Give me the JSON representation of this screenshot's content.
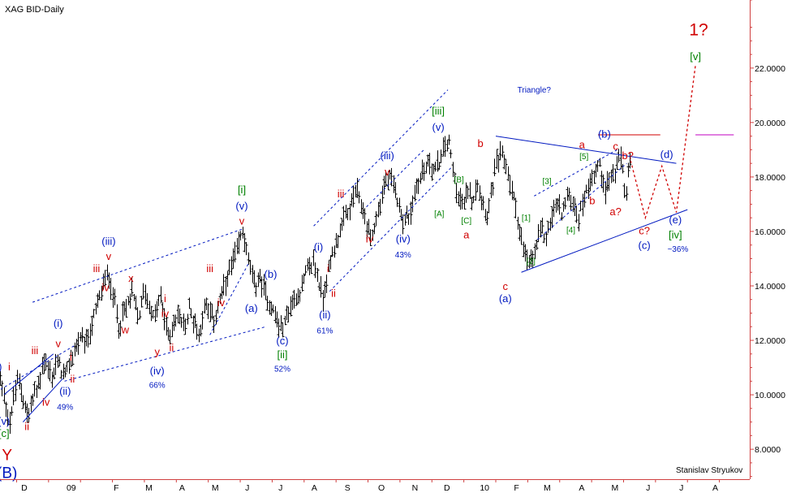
{
  "chart_data": {
    "type": "bar",
    "title": "XAG BID-Daily",
    "author": "Stanislav Stryukov",
    "ylim": [
      6.9,
      24.5
    ],
    "y_ticks": [
      8,
      10,
      12,
      14,
      16,
      18,
      20,
      22
    ],
    "y_tick_labels": [
      "8.0000",
      "10.0000",
      "12.0000",
      "14.0000",
      "16.0000",
      "18.0000",
      "20.0000",
      "22.0000"
    ],
    "x_labels": [
      {
        "label": "D",
        "x": 0.04
      },
      {
        "label": "09",
        "x": 1.51
      },
      {
        "label": "F",
        "x": 2.92
      },
      {
        "label": "M",
        "x": 3.94
      },
      {
        "label": "A",
        "x": 4.98
      },
      {
        "label": "M",
        "x": 6.02
      },
      {
        "label": "J",
        "x": 7.02
      },
      {
        "label": "J",
        "x": 8.06
      },
      {
        "label": "A",
        "x": 9.12
      },
      {
        "label": "S",
        "x": 10.16
      },
      {
        "label": "O",
        "x": 11.22
      },
      {
        "label": "N",
        "x": 12.27
      },
      {
        "label": "D",
        "x": 13.27
      },
      {
        "label": "10",
        "x": 14.45
      },
      {
        "label": "F",
        "x": 15.45
      },
      {
        "label": "M",
        "x": 16.41
      },
      {
        "label": "A",
        "x": 17.49
      },
      {
        "label": "M",
        "x": 18.53
      },
      {
        "label": "J",
        "x": 19.57
      },
      {
        "label": "J",
        "x": 20.61
      },
      {
        "label": "A",
        "x": 21.67
      }
    ],
    "xlim": [
      -0.72,
      22.75
    ],
    "x_tick_marks": [
      -0.2,
      0.8,
      1.8,
      2.8,
      3.8,
      4.8,
      5.8,
      6.8,
      7.8,
      8.8,
      9.8,
      10.8,
      11.8,
      12.8,
      13.8,
      14.8,
      15.8,
      16.8,
      17.8,
      18.8,
      19.8,
      20.8,
      21.8,
      22.8
    ],
    "price_path": [
      [
        -0.72,
        10.6
      ],
      [
        -0.55,
        9.7
      ],
      [
        -0.4,
        8.9
      ],
      [
        -0.3,
        9.9
      ],
      [
        -0.15,
        10.6
      ],
      [
        0.0,
        9.9
      ],
      [
        0.15,
        9.1
      ],
      [
        0.3,
        9.9
      ],
      [
        0.5,
        10.4
      ],
      [
        0.62,
        11.3
      ],
      [
        0.75,
        11.0
      ],
      [
        0.9,
        10.6
      ],
      [
        1.05,
        11.2
      ],
      [
        1.15,
        11.0
      ],
      [
        1.3,
        10.6
      ],
      [
        1.55,
        11.5
      ],
      [
        1.75,
        12.0
      ],
      [
        1.95,
        11.8
      ],
      [
        2.2,
        12.8
      ],
      [
        2.45,
        13.8
      ],
      [
        2.65,
        14.5
      ],
      [
        2.85,
        13.5
      ],
      [
        2.98,
        12.6
      ],
      [
        3.2,
        13.1
      ],
      [
        3.4,
        13.8
      ],
      [
        3.6,
        12.8
      ],
      [
        3.8,
        13.9
      ],
      [
        4.05,
        12.8
      ],
      [
        4.3,
        13.5
      ],
      [
        4.55,
        12.1
      ],
      [
        4.85,
        13.0
      ],
      [
        5.05,
        12.4
      ],
      [
        5.2,
        13.2
      ],
      [
        5.5,
        12.2
      ],
      [
        5.7,
        13.4
      ],
      [
        5.95,
        12.7
      ],
      [
        6.2,
        13.6
      ],
      [
        6.45,
        14.5
      ],
      [
        6.7,
        15.3
      ],
      [
        6.88,
        16.1
      ],
      [
        7.05,
        14.9
      ],
      [
        7.22,
        14.0
      ],
      [
        7.4,
        14.3
      ],
      [
        7.62,
        13.6
      ],
      [
        7.8,
        13.2
      ],
      [
        7.98,
        12.6
      ],
      [
        8.12,
        12.4
      ],
      [
        8.3,
        13.1
      ],
      [
        8.5,
        13.5
      ],
      [
        8.72,
        14.0
      ],
      [
        8.9,
        14.6
      ],
      [
        9.1,
        14.9
      ],
      [
        9.25,
        14.1
      ],
      [
        9.38,
        13.6
      ],
      [
        9.52,
        14.4
      ],
      [
        9.75,
        15.5
      ],
      [
        9.95,
        16.1
      ],
      [
        10.2,
        16.8
      ],
      [
        10.42,
        17.5
      ],
      [
        10.62,
        16.8
      ],
      [
        10.8,
        16.0
      ],
      [
        10.95,
        15.9
      ],
      [
        11.12,
        16.8
      ],
      [
        11.32,
        17.8
      ],
      [
        11.5,
        17.9
      ],
      [
        11.72,
        17.2
      ],
      [
        11.9,
        16.4
      ],
      [
        12.1,
        16.6
      ],
      [
        12.3,
        17.6
      ],
      [
        12.5,
        18.2
      ],
      [
        12.7,
        18.6
      ],
      [
        12.9,
        18.2
      ],
      [
        13.1,
        18.8
      ],
      [
        13.3,
        19.4
      ],
      [
        13.45,
        18.3
      ],
      [
        13.62,
        17.3
      ],
      [
        13.8,
        16.9
      ],
      [
        13.92,
        17.6
      ],
      [
        14.08,
        17.2
      ],
      [
        14.22,
        17.9
      ],
      [
        14.38,
        17.1
      ],
      [
        14.52,
        16.6
      ],
      [
        14.66,
        17.6
      ],
      [
        14.82,
        18.5
      ],
      [
        14.98,
        18.9
      ],
      [
        15.12,
        18.4
      ],
      [
        15.3,
        17.5
      ],
      [
        15.48,
        16.5
      ],
      [
        15.62,
        15.5
      ],
      [
        15.8,
        14.7
      ],
      [
        16.0,
        15.2
      ],
      [
        16.2,
        16.1
      ],
      [
        16.35,
        15.8
      ],
      [
        16.52,
        16.5
      ],
      [
        16.7,
        17.0
      ],
      [
        16.88,
        16.7
      ],
      [
        17.05,
        17.4
      ],
      [
        17.22,
        17.0
      ],
      [
        17.38,
        16.5
      ],
      [
        17.55,
        17.2
      ],
      [
        17.72,
        17.8
      ],
      [
        17.88,
        18.2
      ],
      [
        18.05,
        18.4
      ],
      [
        18.22,
        17.6
      ],
      [
        18.38,
        17.9
      ],
      [
        18.55,
        18.3
      ],
      [
        18.72,
        18.7
      ],
      [
        18.86,
        17.3
      ],
      [
        19.0,
        18.5
      ]
    ],
    "forecast_path": [
      [
        19.02,
        18.6
      ],
      [
        19.48,
        16.5
      ],
      [
        20.0,
        18.4
      ],
      [
        20.45,
        16.7
      ],
      [
        21.05,
        22.1
      ]
    ],
    "trendlines": [
      {
        "points": [
          [
            -0.6,
            10.0
          ],
          [
            0.95,
            11.5
          ]
        ],
        "style": "solid"
      },
      {
        "points": [
          [
            0.0,
            9.0
          ],
          [
            1.25,
            10.6
          ]
        ],
        "style": "solid"
      },
      {
        "points": [
          [
            -0.7,
            10.2
          ],
          [
            1.6,
            11.8
          ]
        ],
        "style": "dashed"
      },
      {
        "points": [
          [
            0.3,
            13.4
          ],
          [
            6.9,
            16.1
          ]
        ],
        "style": "dashed"
      },
      {
        "points": [
          [
            1.3,
            10.5
          ],
          [
            7.6,
            12.5
          ]
        ],
        "style": "dashed"
      },
      {
        "points": [
          [
            5.85,
            12.2
          ],
          [
            7.05,
            14.8
          ]
        ],
        "style": "dashed"
      },
      {
        "points": [
          [
            9.1,
            16.2
          ],
          [
            13.3,
            21.2
          ]
        ],
        "style": "dashed"
      },
      {
        "points": [
          [
            9.6,
            13.8
          ],
          [
            13.45,
            18.4
          ]
        ],
        "style": "dashed"
      },
      {
        "points": [
          [
            10.75,
            16.9
          ],
          [
            12.55,
            19.0
          ]
        ],
        "style": "dashed"
      },
      {
        "points": [
          [
            16.1,
            15.7
          ],
          [
            18.9,
            18.5
          ]
        ],
        "style": "dashed"
      },
      {
        "points": [
          [
            16.0,
            17.3
          ],
          [
            18.6,
            19.0
          ]
        ],
        "style": "dashed"
      },
      {
        "points": [
          [
            14.8,
            19.5
          ],
          [
            20.45,
            18.5
          ]
        ],
        "style": "solid"
      },
      {
        "points": [
          [
            15.6,
            14.5
          ],
          [
            20.8,
            16.8
          ]
        ],
        "style": "solid"
      }
    ],
    "hlines": [
      {
        "points": [
          [
            18.0,
            19.55
          ],
          [
            19.95,
            19.55
          ]
        ],
        "color": "#d00000"
      },
      {
        "points": [
          [
            21.05,
            19.55
          ],
          [
            22.25,
            19.55
          ]
        ],
        "color": "#c000c0"
      }
    ],
    "wave_labels": [
      {
        "text": "Y",
        "x": -0.5,
        "y": 7.6,
        "color": "#d00000",
        "size": 19
      },
      {
        "text": "(B)",
        "x": -0.5,
        "y": 6.95,
        "color": "#0018c0",
        "size": 19
      },
      {
        "text": "[c]",
        "x": -0.6,
        "y": 8.45,
        "color": "#008000",
        "size": 13
      },
      {
        "text": "(v)",
        "x": -0.6,
        "y": 8.9,
        "color": "#0018c0",
        "size": 13
      },
      {
        "text": "(v)",
        "x": -0.85,
        "y": 10.9,
        "color": "#0018c0",
        "size": 13
      },
      {
        "text": "i",
        "x": -0.43,
        "y": 10.9,
        "color": "#d00000",
        "size": 13
      },
      {
        "text": "ii",
        "x": 0.12,
        "y": 8.7,
        "color": "#d00000",
        "size": 13
      },
      {
        "text": "iii",
        "x": 0.37,
        "y": 11.5,
        "color": "#d00000",
        "size": 13
      },
      {
        "text": "iv",
        "x": 0.72,
        "y": 9.6,
        "color": "#d00000",
        "size": 13
      },
      {
        "text": "(i)",
        "x": 1.1,
        "y": 12.5,
        "color": "#0018c0",
        "size": 13
      },
      {
        "text": "v",
        "x": 1.1,
        "y": 11.75,
        "color": "#d00000",
        "size": 13
      },
      {
        "text": "i",
        "x": 1.5,
        "y": 11.25,
        "color": "#d00000",
        "size": 13
      },
      {
        "text": "ii",
        "x": 1.55,
        "y": 10.45,
        "color": "#d00000",
        "size": 13
      },
      {
        "text": "(ii)",
        "x": 1.32,
        "y": 10.0,
        "color": "#0018c0",
        "size": 13
      },
      {
        "text": "49%",
        "x": 1.32,
        "y": 9.45,
        "color": "#0018c0",
        "size": 10
      },
      {
        "text": "(iii)",
        "x": 2.68,
        "y": 15.5,
        "color": "#0018c0",
        "size": 13
      },
      {
        "text": "v",
        "x": 2.68,
        "y": 14.95,
        "color": "#d00000",
        "size": 13
      },
      {
        "text": "iii",
        "x": 2.3,
        "y": 14.5,
        "color": "#d00000",
        "size": 13
      },
      {
        "text": "iv",
        "x": 2.58,
        "y": 13.8,
        "color": "#d00000",
        "size": 13
      },
      {
        "text": "x",
        "x": 3.38,
        "y": 14.15,
        "color": "#d00000",
        "size": 13
      },
      {
        "text": "w",
        "x": 3.2,
        "y": 12.25,
        "color": "#d00000",
        "size": 13
      },
      {
        "text": "i",
        "x": 4.45,
        "y": 13.4,
        "color": "#d00000",
        "size": 13
      },
      {
        "text": "iv",
        "x": 4.45,
        "y": 12.85,
        "color": "#d00000",
        "size": 13
      },
      {
        "text": "y",
        "x": 4.2,
        "y": 11.45,
        "color": "#d00000",
        "size": 13
      },
      {
        "text": "ii",
        "x": 4.65,
        "y": 11.6,
        "color": "#d00000",
        "size": 13
      },
      {
        "text": "(iv)",
        "x": 4.2,
        "y": 10.75,
        "color": "#0018c0",
        "size": 13
      },
      {
        "text": "66%",
        "x": 4.2,
        "y": 10.25,
        "color": "#0018c0",
        "size": 10
      },
      {
        "text": "iii",
        "x": 5.85,
        "y": 14.5,
        "color": "#d00000",
        "size": 13
      },
      {
        "text": "iv",
        "x": 6.2,
        "y": 13.25,
        "color": "#d00000",
        "size": 13
      },
      {
        "text": "[i]",
        "x": 6.85,
        "y": 17.4,
        "color": "#008000",
        "size": 13
      },
      {
        "text": "(v)",
        "x": 6.85,
        "y": 16.8,
        "color": "#0018c0",
        "size": 13
      },
      {
        "text": "v",
        "x": 6.85,
        "y": 16.25,
        "color": "#d00000",
        "size": 13
      },
      {
        "text": "(b)",
        "x": 7.75,
        "y": 14.3,
        "color": "#0018c0",
        "size": 13
      },
      {
        "text": "(a)",
        "x": 7.15,
        "y": 13.05,
        "color": "#0018c0",
        "size": 13
      },
      {
        "text": "(c)",
        "x": 8.12,
        "y": 11.85,
        "color": "#0018c0",
        "size": 13
      },
      {
        "text": "[ii]",
        "x": 8.12,
        "y": 11.35,
        "color": "#008000",
        "size": 13
      },
      {
        "text": "52%",
        "x": 8.12,
        "y": 10.85,
        "color": "#0018c0",
        "size": 10
      },
      {
        "text": "(i)",
        "x": 9.25,
        "y": 15.3,
        "color": "#0018c0",
        "size": 13
      },
      {
        "text": "i",
        "x": 9.55,
        "y": 14.5,
        "color": "#d00000",
        "size": 13
      },
      {
        "text": "ii",
        "x": 9.72,
        "y": 13.6,
        "color": "#d00000",
        "size": 13
      },
      {
        "text": "(ii)",
        "x": 9.45,
        "y": 12.8,
        "color": "#0018c0",
        "size": 13
      },
      {
        "text": "61%",
        "x": 9.45,
        "y": 12.25,
        "color": "#0018c0",
        "size": 10
      },
      {
        "text": "iii",
        "x": 9.95,
        "y": 17.25,
        "color": "#d00000",
        "size": 13
      },
      {
        "text": "iv",
        "x": 10.85,
        "y": 15.6,
        "color": "#d00000",
        "size": 13
      },
      {
        "text": "(iii)",
        "x": 11.4,
        "y": 18.65,
        "color": "#0018c0",
        "size": 13
      },
      {
        "text": "v",
        "x": 11.4,
        "y": 18.05,
        "color": "#d00000",
        "size": 13
      },
      {
        "text": "(iv)",
        "x": 11.9,
        "y": 15.6,
        "color": "#0018c0",
        "size": 13
      },
      {
        "text": "43%",
        "x": 11.9,
        "y": 15.05,
        "color": "#0018c0",
        "size": 10
      },
      {
        "text": "[iii]",
        "x": 13.0,
        "y": 20.3,
        "color": "#008000",
        "size": 13
      },
      {
        "text": "(v)",
        "x": 13.0,
        "y": 19.7,
        "color": "#0018c0",
        "size": 13
      },
      {
        "text": "[A]",
        "x": 13.03,
        "y": 16.55,
        "color": "#008000",
        "size": 10
      },
      {
        "text": "[B]",
        "x": 13.65,
        "y": 17.8,
        "color": "#008000",
        "size": 10
      },
      {
        "text": "[C]",
        "x": 13.88,
        "y": 16.3,
        "color": "#008000",
        "size": 10
      },
      {
        "text": "a",
        "x": 13.88,
        "y": 15.75,
        "color": "#d00000",
        "size": 13
      },
      {
        "text": "b",
        "x": 14.32,
        "y": 19.1,
        "color": "#d00000",
        "size": 13
      },
      {
        "text": "Triangle?",
        "x": 16.0,
        "y": 21.1,
        "color": "#0018c0",
        "size": 10
      },
      {
        "text": "c",
        "x": 15.1,
        "y": 13.85,
        "color": "#d00000",
        "size": 13
      },
      {
        "text": "(a)",
        "x": 15.1,
        "y": 13.4,
        "color": "#0018c0",
        "size": 13
      },
      {
        "text": "[1]",
        "x": 15.75,
        "y": 16.4,
        "color": "#008000",
        "size": 10
      },
      {
        "text": "[2]",
        "x": 15.9,
        "y": 14.8,
        "color": "#008000",
        "size": 10
      },
      {
        "text": "[3]",
        "x": 16.4,
        "y": 17.75,
        "color": "#008000",
        "size": 10
      },
      {
        "text": "[4]",
        "x": 17.15,
        "y": 15.95,
        "color": "#008000",
        "size": 10
      },
      {
        "text": "[5]",
        "x": 17.56,
        "y": 18.65,
        "color": "#008000",
        "size": 10
      },
      {
        "text": "a",
        "x": 17.5,
        "y": 19.05,
        "color": "#d00000",
        "size": 13
      },
      {
        "text": "b",
        "x": 17.82,
        "y": 17.0,
        "color": "#d00000",
        "size": 13
      },
      {
        "text": "(b)",
        "x": 18.2,
        "y": 19.45,
        "color": "#0018c0",
        "size": 13
      },
      {
        "text": "c",
        "x": 18.55,
        "y": 19.0,
        "color": "#d00000",
        "size": 13
      },
      {
        "text": "b?",
        "x": 18.93,
        "y": 18.65,
        "color": "#d00000",
        "size": 13
      },
      {
        "text": "a?",
        "x": 18.55,
        "y": 16.6,
        "color": "#d00000",
        "size": 13
      },
      {
        "text": "(d)",
        "x": 20.15,
        "y": 18.7,
        "color": "#0018c0",
        "size": 13
      },
      {
        "text": "c?",
        "x": 19.45,
        "y": 15.9,
        "color": "#d00000",
        "size": 13
      },
      {
        "text": "(c)",
        "x": 19.45,
        "y": 15.35,
        "color": "#0018c0",
        "size": 13
      },
      {
        "text": "(e)",
        "x": 20.42,
        "y": 16.3,
        "color": "#0018c0",
        "size": 13
      },
      {
        "text": "[iv]",
        "x": 20.42,
        "y": 15.75,
        "color": "#008000",
        "size": 13
      },
      {
        "text": "~36%",
        "x": 20.5,
        "y": 15.25,
        "color": "#0018c0",
        "size": 10
      },
      {
        "text": "[v]",
        "x": 21.05,
        "y": 22.3,
        "color": "#008000",
        "size": 13
      },
      {
        "text": "1?",
        "x": 21.15,
        "y": 23.2,
        "color": "#d00000",
        "size": 21
      }
    ],
    "colors": {
      "bars": "#000000",
      "blue": "#0018c0",
      "red": "#d00000",
      "green": "#008000",
      "magenta": "#c000c0",
      "frame": "#d04040"
    }
  }
}
